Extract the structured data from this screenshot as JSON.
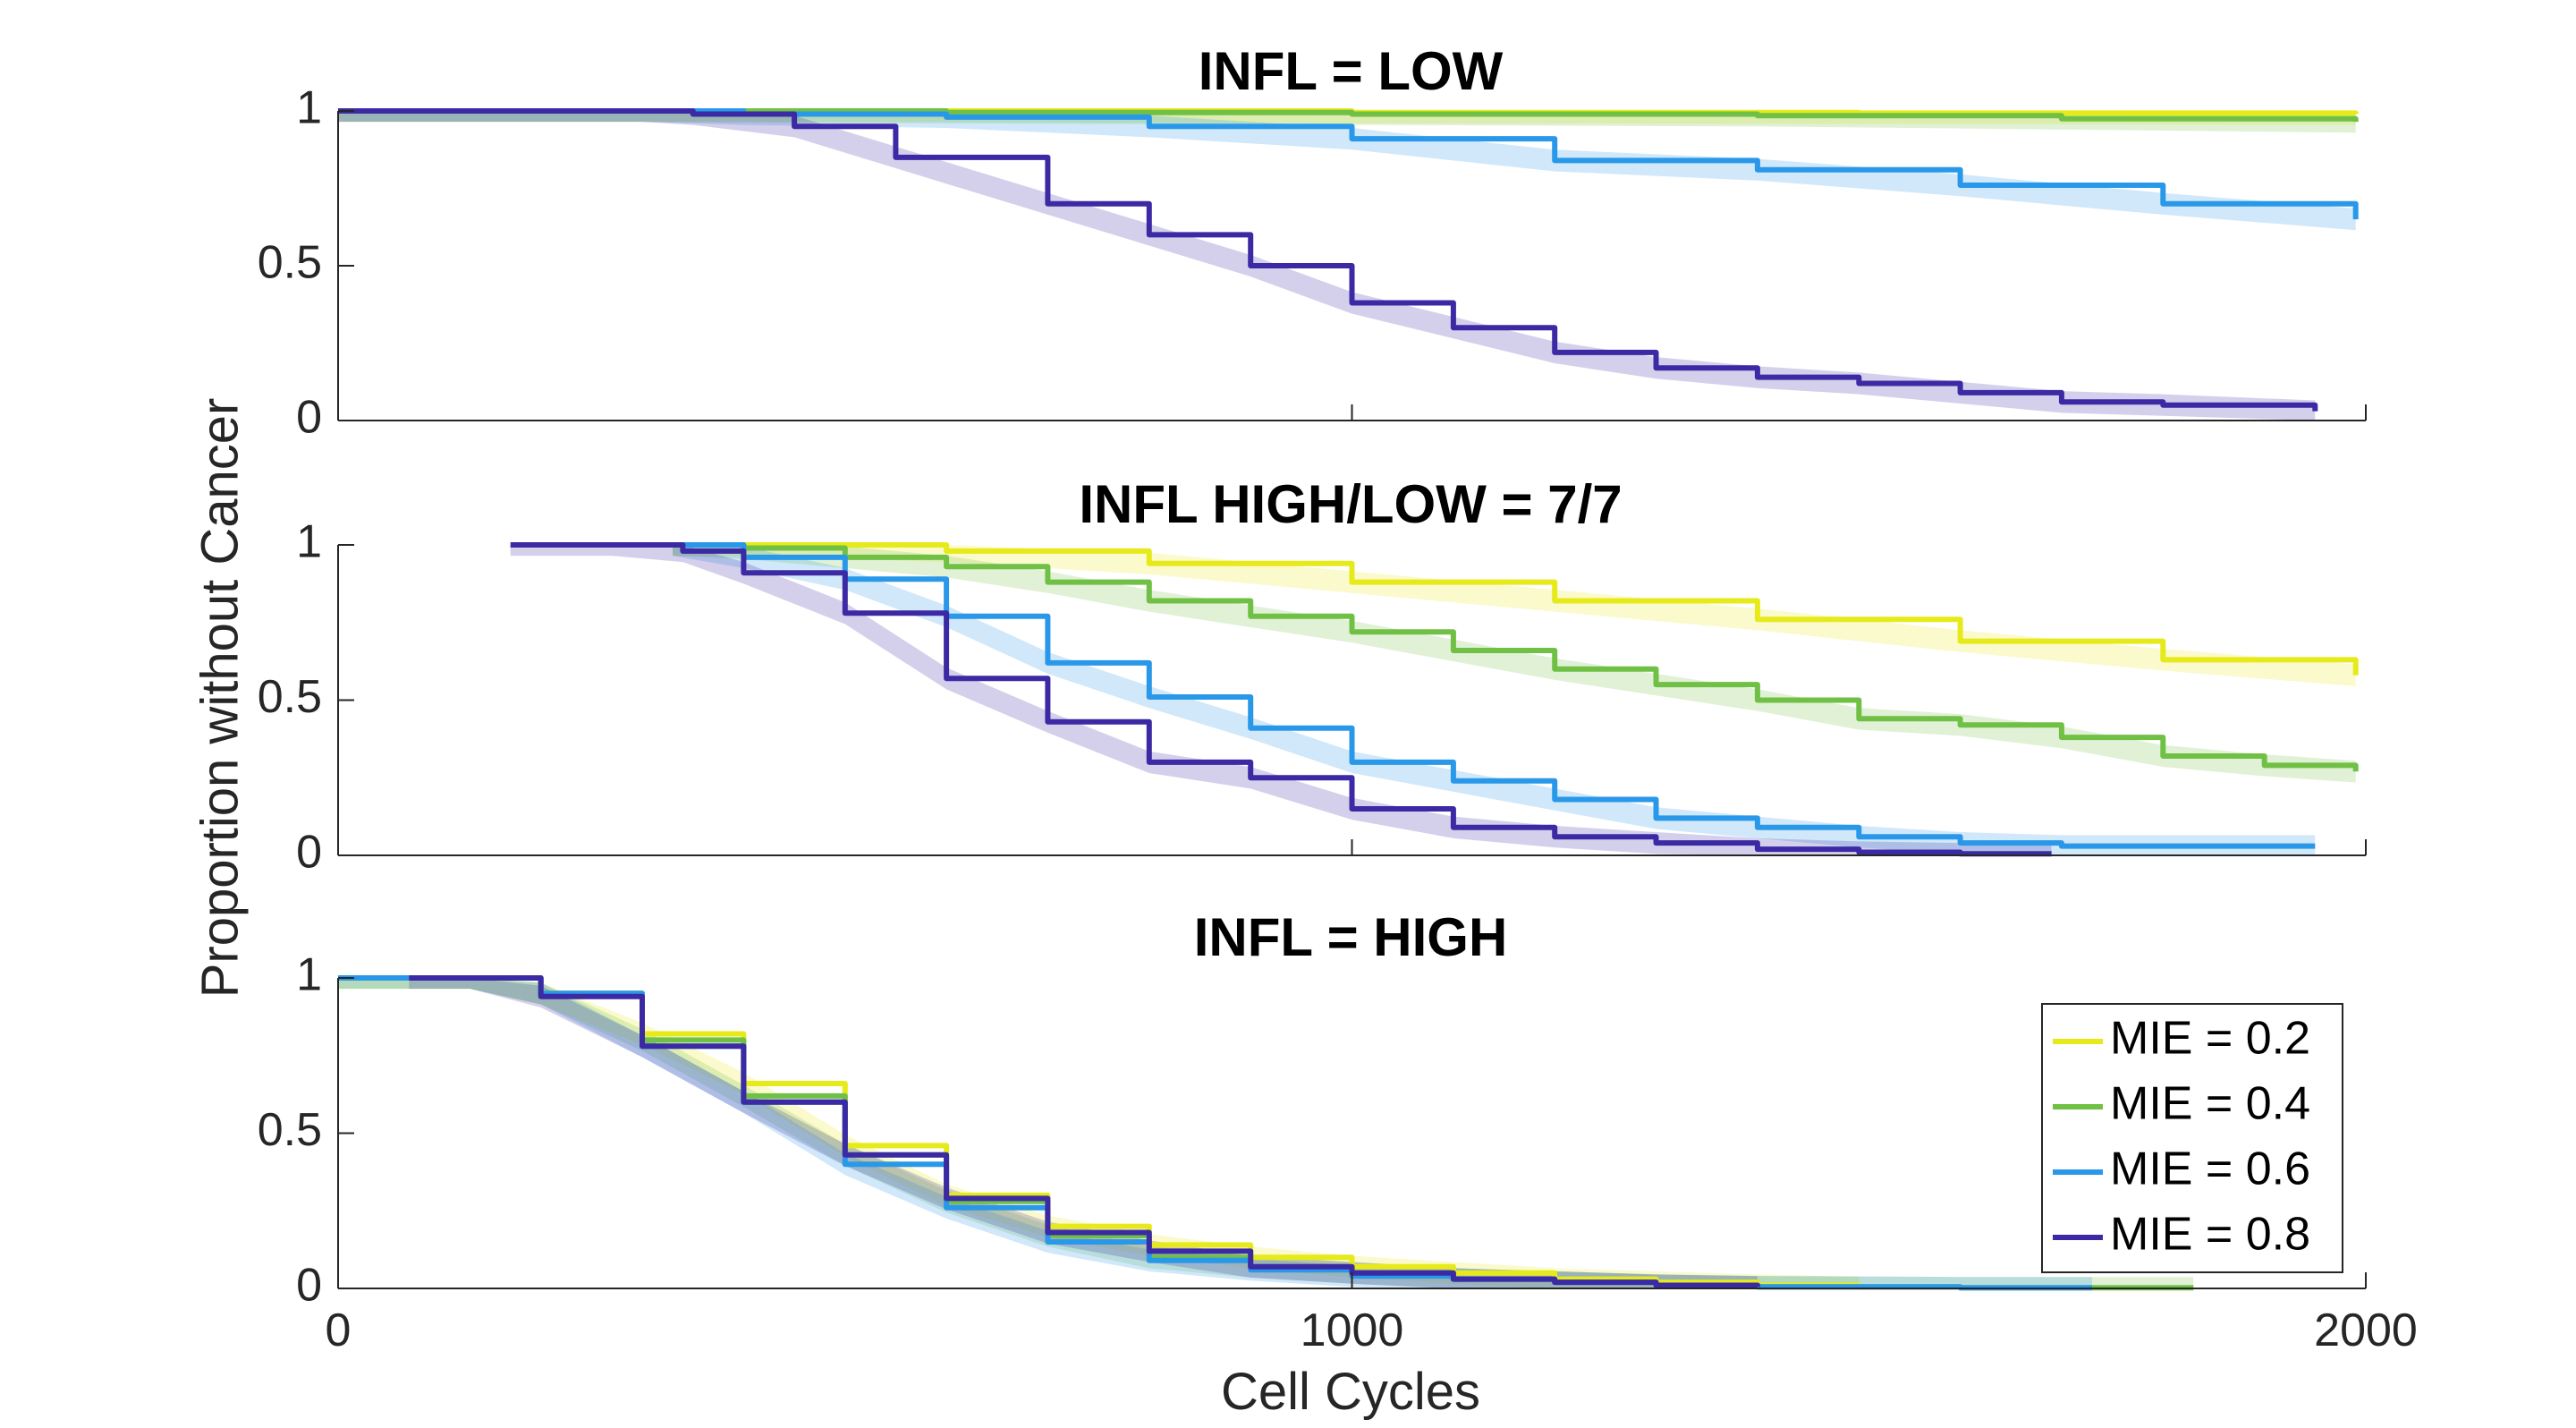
{
  "figure": {
    "ylabel": "Proportion without Cancer",
    "xlabel": "Cell Cycles"
  },
  "legend": {
    "placement": "bottom-right of third panel",
    "entries": [
      "MIE = 0.2",
      "MIE = 0.4",
      "MIE = 0.6",
      "MIE = 0.8"
    ]
  },
  "colors": {
    "MIE = 0.2": "#e6ea1a",
    "MIE = 0.4": "#71c046",
    "MIE = 0.6": "#2a98e8",
    "MIE = 0.8": "#3b2aa4",
    "axis": "#262626"
  },
  "chart_data": [
    {
      "type": "line",
      "title": "INFL = LOW",
      "xlim": [
        0,
        2000
      ],
      "ylim": [
        0,
        1
      ],
      "xticks": [
        "0",
        "1000",
        "2000"
      ],
      "yticks": [
        "0",
        "0.5",
        "1"
      ],
      "show_xticks": false,
      "grid": false,
      "series": [
        {
          "name": "MIE = 0.2",
          "x": [
            0,
            300,
            600,
            1000,
            1500,
            1990
          ],
          "y": [
            1,
            1,
            1,
            0.995,
            0.993,
            0.99
          ]
        },
        {
          "name": "MIE = 0.4",
          "x": [
            0,
            300,
            600,
            1000,
            1400,
            1700,
            1990
          ],
          "y": [
            1,
            1,
            0.995,
            0.99,
            0.985,
            0.975,
            0.965
          ]
        },
        {
          "name": "MIE = 0.6",
          "x": [
            0,
            300,
            400,
            600,
            800,
            1000,
            1200,
            1400,
            1600,
            1800,
            1990
          ],
          "y": [
            1,
            1,
            0.99,
            0.98,
            0.95,
            0.91,
            0.84,
            0.81,
            0.76,
            0.7,
            0.65
          ]
        },
        {
          "name": "MIE = 0.8",
          "x": [
            0,
            300,
            350,
            450,
            550,
            700,
            800,
            900,
            1000,
            1100,
            1200,
            1300,
            1400,
            1500,
            1600,
            1700,
            1800,
            1950
          ],
          "y": [
            1,
            1,
            0.99,
            0.95,
            0.85,
            0.7,
            0.6,
            0.5,
            0.38,
            0.3,
            0.22,
            0.17,
            0.14,
            0.12,
            0.09,
            0.06,
            0.05,
            0.03
          ]
        }
      ]
    },
    {
      "type": "line",
      "title": "INFL HIGH/LOW = 7/7",
      "xlim": [
        0,
        2000
      ],
      "ylim": [
        0,
        1
      ],
      "xticks": [
        "0",
        "1000",
        "2000"
      ],
      "yticks": [
        "0",
        "0.5",
        "1"
      ],
      "show_xticks": false,
      "grid": false,
      "series": [
        {
          "name": "MIE = 0.2",
          "x": [
            330,
            400,
            600,
            800,
            1000,
            1200,
            1400,
            1600,
            1800,
            1990
          ],
          "y": [
            1,
            1,
            0.98,
            0.94,
            0.88,
            0.82,
            0.76,
            0.69,
            0.63,
            0.58
          ]
        },
        {
          "name": "MIE = 0.4",
          "x": [
            330,
            400,
            500,
            600,
            700,
            800,
            900,
            1000,
            1100,
            1200,
            1300,
            1400,
            1500,
            1600,
            1700,
            1800,
            1900,
            1990
          ],
          "y": [
            1,
            0.99,
            0.96,
            0.93,
            0.88,
            0.82,
            0.77,
            0.72,
            0.66,
            0.6,
            0.55,
            0.5,
            0.44,
            0.42,
            0.38,
            0.32,
            0.29,
            0.27
          ]
        },
        {
          "name": "MIE = 0.6",
          "x": [
            330,
            400,
            500,
            600,
            700,
            800,
            900,
            1000,
            1100,
            1200,
            1300,
            1400,
            1500,
            1600,
            1700,
            1800,
            1950
          ],
          "y": [
            1,
            0.96,
            0.89,
            0.77,
            0.62,
            0.51,
            0.41,
            0.3,
            0.24,
            0.18,
            0.12,
            0.09,
            0.06,
            0.04,
            0.03,
            0.03,
            0.03
          ]
        },
        {
          "name": "MIE = 0.8",
          "x": [
            170,
            270,
            340,
            400,
            500,
            600,
            700,
            800,
            900,
            1000,
            1100,
            1200,
            1300,
            1400,
            1500,
            1600,
            1690
          ],
          "y": [
            1,
            1,
            0.98,
            0.91,
            0.78,
            0.57,
            0.43,
            0.3,
            0.25,
            0.15,
            0.09,
            0.06,
            0.04,
            0.02,
            0.01,
            0.005,
            0.005
          ]
        }
      ]
    },
    {
      "type": "line",
      "title": "INFL = HIGH",
      "xlim": [
        0,
        2000
      ],
      "ylim": [
        0,
        1
      ],
      "xticks": [
        "0",
        "1000",
        "2000"
      ],
      "yticks": [
        "0",
        "0.5",
        "1"
      ],
      "show_xticks": true,
      "grid": false,
      "series": [
        {
          "name": "MIE = 0.2",
          "x": [
            0,
            70,
            130,
            200,
            300,
            400,
            500,
            600,
            700,
            800,
            900,
            1000,
            1100,
            1200,
            1300,
            1400,
            1500
          ],
          "y": [
            1,
            1,
            1,
            0.95,
            0.82,
            0.66,
            0.46,
            0.3,
            0.2,
            0.14,
            0.1,
            0.07,
            0.05,
            0.03,
            0.02,
            0.01,
            0.003
          ]
        },
        {
          "name": "MIE = 0.4",
          "x": [
            0,
            70,
            130,
            200,
            300,
            400,
            500,
            600,
            700,
            800,
            900,
            1000,
            1100,
            1200,
            1300,
            1400,
            1600,
            1830
          ],
          "y": [
            1,
            1,
            1,
            0.95,
            0.8,
            0.62,
            0.43,
            0.28,
            0.17,
            0.1,
            0.07,
            0.05,
            0.03,
            0.02,
            0.01,
            0.005,
            0.002,
            0.002
          ]
        },
        {
          "name": "MIE = 0.6",
          "x": [
            0,
            70,
            130,
            200,
            300,
            400,
            500,
            600,
            700,
            800,
            900,
            1000,
            1100,
            1200,
            1300,
            1400,
            1600,
            1730
          ],
          "y": [
            1,
            1,
            1,
            0.95,
            0.78,
            0.6,
            0.4,
            0.26,
            0.15,
            0.09,
            0.06,
            0.04,
            0.03,
            0.02,
            0.01,
            0.005,
            0.002,
            0.002
          ]
        },
        {
          "name": "MIE = 0.8",
          "x": [
            70,
            130,
            200,
            300,
            400,
            500,
            600,
            700,
            800,
            900,
            1000,
            1100,
            1200,
            1300,
            1400
          ],
          "y": [
            1,
            1,
            0.94,
            0.78,
            0.6,
            0.43,
            0.29,
            0.18,
            0.12,
            0.07,
            0.05,
            0.03,
            0.02,
            0.01,
            0.005
          ]
        }
      ]
    }
  ]
}
